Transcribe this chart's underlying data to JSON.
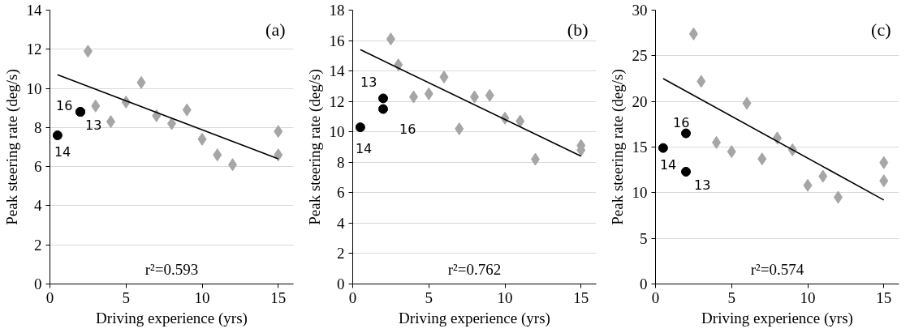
{
  "chart_data": [
    {
      "type": "scatter",
      "xlabel": "Driving experience (yrs)",
      "ylabel": "Peak steering rate (deg/s)",
      "xlim": [
        0,
        16
      ],
      "xticks": [
        0,
        5,
        10,
        15
      ],
      "ylim": [
        0,
        14
      ],
      "yticks": [
        0,
        2,
        4,
        6,
        8,
        10,
        12,
        14
      ],
      "grid": "y",
      "annotations": [
        "(a)",
        "r²=0.593",
        "14",
        "16",
        "13"
      ],
      "series": [
        {
          "type": "scatter",
          "marker": "diamond",
          "color": "#a6a6a6",
          "x": [
            2.5,
            3,
            4,
            5,
            6,
            7,
            8,
            9,
            10,
            11,
            12,
            15,
            15
          ],
          "values": [
            11.9,
            9.1,
            8.3,
            9.3,
            10.3,
            8.6,
            8.2,
            8.9,
            7.4,
            6.6,
            6.1,
            7.8,
            6.6
          ]
        },
        {
          "type": "scatter",
          "marker": "circle",
          "color": "#000000",
          "x": [
            0.5,
            2,
            2
          ],
          "values": [
            7.6,
            8.8,
            8.8
          ]
        },
        {
          "type": "line",
          "marker": "none",
          "color": "#000000",
          "x": [
            0.5,
            15
          ],
          "values": [
            10.7,
            6.4
          ]
        }
      ]
    },
    {
      "type": "scatter",
      "xlabel": "Driving experience (yrs)",
      "ylabel": "Peak steering rate (deg/s)",
      "xlim": [
        0,
        16
      ],
      "xticks": [
        0,
        5,
        10,
        15
      ],
      "ylim": [
        0,
        18
      ],
      "yticks": [
        0,
        2,
        4,
        6,
        8,
        10,
        12,
        14,
        16,
        18
      ],
      "grid": "y",
      "annotations": [
        "(b)",
        "r²=0.762",
        "14",
        "13",
        "16"
      ],
      "series": [
        {
          "type": "scatter",
          "marker": "diamond",
          "color": "#a6a6a6",
          "x": [
            2.5,
            3,
            4,
            5,
            6,
            7,
            8,
            9,
            10,
            11,
            12,
            15,
            15
          ],
          "values": [
            16.1,
            14.4,
            12.3,
            12.5,
            13.6,
            10.2,
            12.3,
            12.4,
            10.9,
            10.7,
            8.2,
            9.1,
            8.8
          ]
        },
        {
          "type": "scatter",
          "marker": "circle",
          "color": "#000000",
          "x": [
            0.5,
            2,
            2
          ],
          "values": [
            10.3,
            12.2,
            11.5
          ]
        },
        {
          "type": "line",
          "marker": "none",
          "color": "#000000",
          "x": [
            0.5,
            15
          ],
          "values": [
            15.4,
            8.4
          ]
        }
      ]
    },
    {
      "type": "scatter",
      "xlabel": "Driving experience (yrs)",
      "ylabel": "Peak steering rate (deg/s)",
      "xlim": [
        0,
        16
      ],
      "xticks": [
        0,
        5,
        10,
        15
      ],
      "ylim": [
        0,
        30
      ],
      "yticks": [
        0,
        5,
        10,
        15,
        20,
        25,
        30
      ],
      "grid": "y",
      "annotations": [
        "(c)",
        "r²=0.574",
        "14",
        "16",
        "13"
      ],
      "series": [
        {
          "type": "scatter",
          "marker": "diamond",
          "color": "#a6a6a6",
          "x": [
            2.5,
            3,
            4,
            5,
            6,
            7,
            8,
            9,
            10,
            11,
            12,
            15,
            15
          ],
          "values": [
            27.4,
            22.2,
            15.5,
            14.5,
            19.8,
            13.7,
            16.0,
            14.7,
            10.8,
            11.8,
            9.5,
            13.3,
            11.3
          ]
        },
        {
          "type": "scatter",
          "marker": "circle",
          "color": "#000000",
          "x": [
            0.5,
            2,
            2
          ],
          "values": [
            14.9,
            16.5,
            12.3
          ]
        },
        {
          "type": "line",
          "marker": "none",
          "color": "#000000",
          "x": [
            0.5,
            15
          ],
          "values": [
            22.5,
            9.2
          ]
        }
      ]
    }
  ]
}
